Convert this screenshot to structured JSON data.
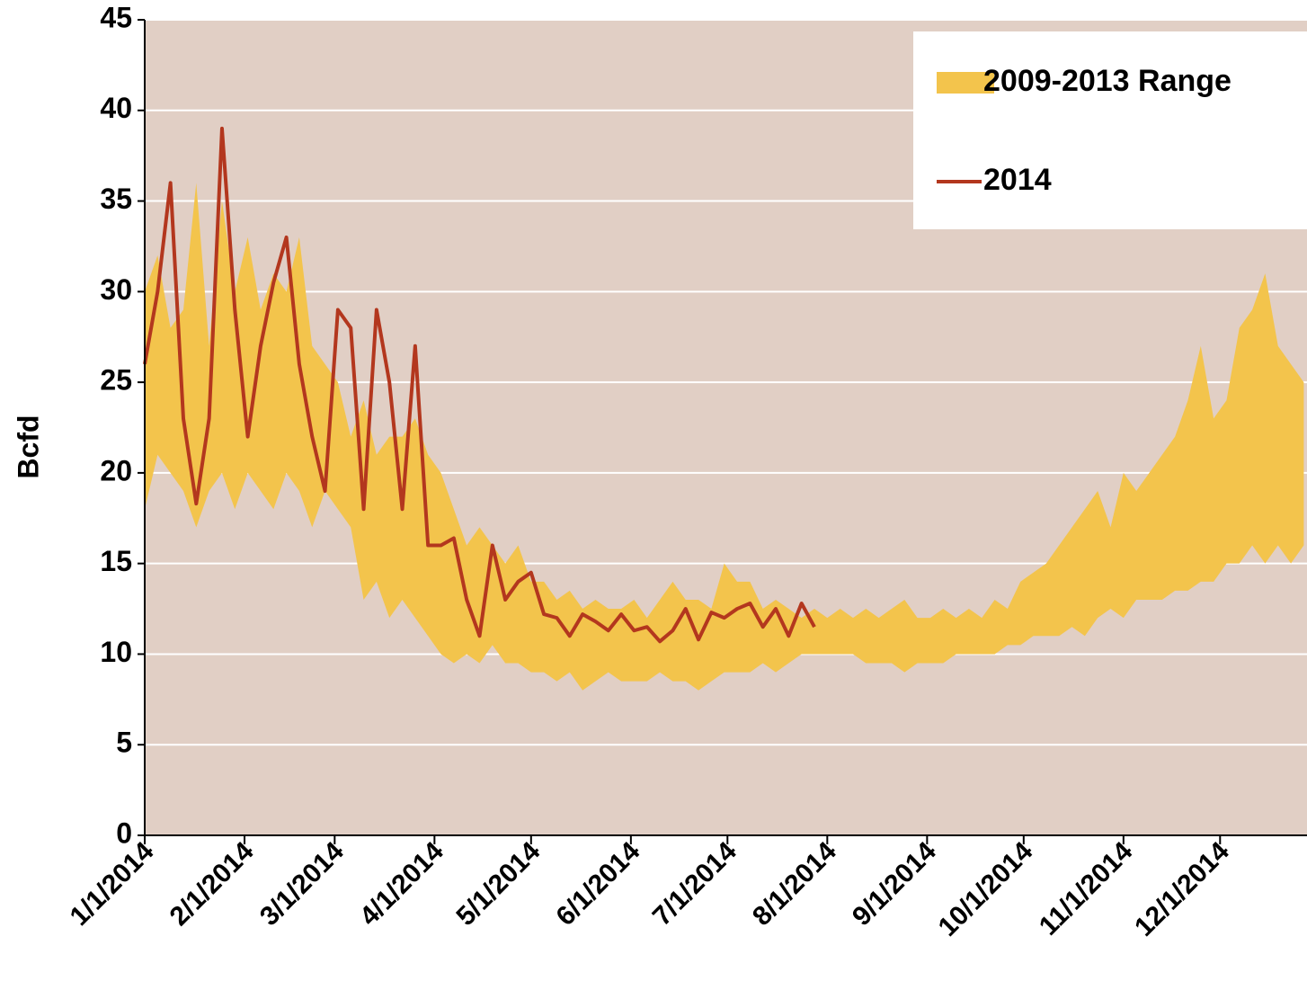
{
  "chart_data": {
    "type": "range-line",
    "y_label": "Bcfd",
    "x": [
      "2014-01-01",
      "2014-01-05",
      "2014-01-09",
      "2014-01-13",
      "2014-01-17",
      "2014-01-21",
      "2014-01-25",
      "2014-01-29",
      "2014-02-02",
      "2014-02-06",
      "2014-02-10",
      "2014-02-14",
      "2014-02-18",
      "2014-02-22",
      "2014-02-26",
      "2014-03-02",
      "2014-03-06",
      "2014-03-10",
      "2014-03-14",
      "2014-03-18",
      "2014-03-22",
      "2014-03-26",
      "2014-03-30",
      "2014-04-03",
      "2014-04-07",
      "2014-04-11",
      "2014-04-15",
      "2014-04-19",
      "2014-04-23",
      "2014-04-27",
      "2014-05-01",
      "2014-05-05",
      "2014-05-09",
      "2014-05-13",
      "2014-05-17",
      "2014-05-21",
      "2014-05-25",
      "2014-05-29",
      "2014-06-02",
      "2014-06-06",
      "2014-06-10",
      "2014-06-14",
      "2014-06-18",
      "2014-06-22",
      "2014-06-26",
      "2014-06-30",
      "2014-07-04",
      "2014-07-08",
      "2014-07-12",
      "2014-07-16",
      "2014-07-20",
      "2014-07-24",
      "2014-07-28",
      "2014-08-01",
      "2014-08-05",
      "2014-08-09",
      "2014-08-13",
      "2014-08-17",
      "2014-08-21",
      "2014-08-25",
      "2014-08-29",
      "2014-09-02",
      "2014-09-06",
      "2014-09-10",
      "2014-09-14",
      "2014-09-18",
      "2014-09-22",
      "2014-09-26",
      "2014-09-30",
      "2014-10-04",
      "2014-10-08",
      "2014-10-12",
      "2014-10-16",
      "2014-10-20",
      "2014-10-24",
      "2014-10-28",
      "2014-11-01",
      "2014-11-05",
      "2014-11-09",
      "2014-11-13",
      "2014-11-17",
      "2014-11-21",
      "2014-11-25",
      "2014-11-29",
      "2014-12-03",
      "2014-12-07",
      "2014-12-11",
      "2014-12-15",
      "2014-12-19",
      "2014-12-23",
      "2014-12-27"
    ],
    "series": [
      {
        "name": "2009-2013 Range",
        "kind": "band",
        "color": "#f3c44c",
        "low": [
          18,
          21,
          20,
          19,
          17,
          19,
          20,
          18,
          20,
          19,
          18,
          20,
          19,
          17,
          19,
          18,
          17,
          13,
          14,
          12,
          13,
          12,
          11,
          10,
          9.5,
          10,
          9.5,
          10.5,
          9.5,
          9.5,
          9,
          9,
          8.5,
          9,
          8,
          8.5,
          9,
          8.5,
          8.5,
          8.5,
          9,
          8.5,
          8.5,
          8,
          8.5,
          9,
          9,
          9,
          9.5,
          9,
          9.5,
          10,
          10,
          10,
          10,
          10,
          9.5,
          9.5,
          9.5,
          9,
          9.5,
          9.5,
          9.5,
          10,
          10,
          10,
          10,
          10.5,
          10.5,
          11,
          11,
          11,
          11.5,
          11,
          12,
          12.5,
          12,
          13,
          13,
          13,
          13.5,
          13.5,
          14,
          14,
          15,
          15,
          16,
          15,
          16,
          15,
          16
        ],
        "high": [
          30,
          32,
          28,
          29,
          36,
          27,
          35,
          30,
          33,
          29,
          31,
          30,
          33,
          27,
          26,
          25,
          22,
          24,
          21,
          22,
          22,
          23,
          21,
          20,
          18,
          16,
          17,
          16,
          15,
          16,
          14,
          14,
          13,
          13.5,
          12.5,
          13,
          12.5,
          12.5,
          13,
          12,
          13,
          14,
          13,
          13,
          12.5,
          15,
          14,
          14,
          12.5,
          13,
          12.5,
          12,
          12.5,
          12,
          12.5,
          12,
          12.5,
          12,
          12.5,
          13,
          12,
          12,
          12.5,
          12,
          12.5,
          12,
          13,
          12.5,
          14,
          14.5,
          15,
          16,
          17,
          18,
          19,
          17,
          20,
          19,
          20,
          21,
          22,
          24,
          27,
          23,
          24,
          28,
          29,
          31,
          27,
          26,
          25
        ]
      },
      {
        "name": "2014",
        "kind": "line",
        "color": "#b3371e",
        "values": [
          26,
          30,
          36,
          23,
          18.3,
          23,
          39,
          29,
          22,
          27,
          30.5,
          33,
          26,
          22,
          19,
          29,
          28,
          18,
          29,
          25,
          18,
          27,
          16,
          16,
          16.4,
          13,
          11,
          16,
          13,
          14,
          14.5,
          12.2,
          12,
          11,
          12.2,
          11.8,
          11.3,
          12.2,
          11.3,
          11.5,
          10.7,
          11.3,
          12.5,
          10.8,
          12.3,
          12,
          12.5,
          12.8,
          11.5,
          12.5,
          11,
          12.8,
          11.5,
          null,
          null,
          null,
          null,
          null,
          null,
          null,
          null,
          null,
          null,
          null,
          null,
          null,
          null,
          null,
          null,
          null,
          null,
          null,
          null,
          null,
          null,
          null,
          null,
          null,
          null,
          null,
          null,
          null,
          null,
          null,
          null,
          null,
          null,
          null,
          null,
          null,
          null
        ]
      }
    ],
    "xlim": [
      "2014-01-01",
      "2014-12-28"
    ],
    "xticks": [
      {
        "value": "2014-01-01",
        "label": "1/1/2014"
      },
      {
        "value": "2014-02-01",
        "label": "2/1/2014"
      },
      {
        "value": "2014-03-01",
        "label": "3/1/2014"
      },
      {
        "value": "2014-04-01",
        "label": "4/1/2014"
      },
      {
        "value": "2014-05-01",
        "label": "5/1/2014"
      },
      {
        "value": "2014-06-01",
        "label": "6/1/2014"
      },
      {
        "value": "2014-07-01",
        "label": "7/1/2014"
      },
      {
        "value": "2014-08-01",
        "label": "8/1/2014"
      },
      {
        "value": "2014-09-01",
        "label": "9/1/2014"
      },
      {
        "value": "2014-10-01",
        "label": "10/1/2014"
      },
      {
        "value": "2014-11-01",
        "label": "11/1/2014"
      },
      {
        "value": "2014-12-01",
        "label": "12/1/2014"
      }
    ],
    "ylim": [
      0,
      45
    ],
    "yticks": [
      0,
      5,
      10,
      15,
      20,
      25,
      30,
      35,
      40,
      45
    ],
    "grid": true,
    "legend": "top-right",
    "background": "#e1cfc5"
  }
}
